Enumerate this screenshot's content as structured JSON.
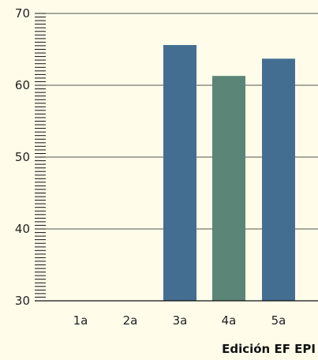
{
  "chart_data": {
    "type": "bar",
    "categories": [
      "1a",
      "2a",
      "3a",
      "4a",
      "5a"
    ],
    "values": [
      null,
      null,
      65.6,
      61.3,
      63.7
    ],
    "bar_colors": [
      "#436e91",
      "#436e91",
      "#436e91",
      "#5a8577",
      "#436e91"
    ],
    "xlabel": "Edición EF EPI",
    "ylabel": "",
    "ylim": [
      30,
      70
    ],
    "yticks": [
      30,
      40,
      50,
      60,
      70
    ],
    "grid": true,
    "colors": {
      "background": "#fffdea",
      "gridline": "#1a1a1a",
      "axis": "#111111"
    }
  }
}
